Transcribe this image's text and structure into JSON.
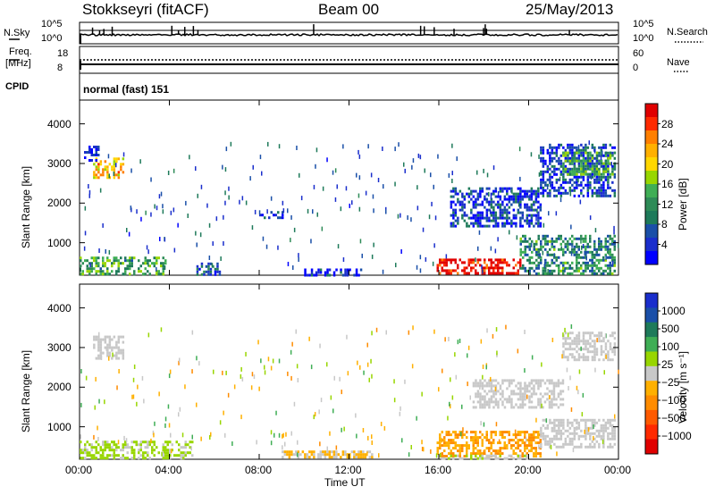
{
  "header": {
    "station": "Stokkseyri (fitACF)",
    "beam": "Beam 00",
    "date": "25/May/2013"
  },
  "noise_panel": {
    "left_label": "N.Sky",
    "right_label": "N.Search",
    "left_ticks": [
      "10^5",
      "10^0"
    ],
    "right_ticks": [
      "10^5",
      "10^0"
    ]
  },
  "freq_panel": {
    "left_label_line1": "Freq.",
    "left_label_line2": "[MHz]",
    "right_label": "Nave",
    "left_ticks": [
      "18",
      "8"
    ],
    "right_ticks": [
      "60",
      "0"
    ]
  },
  "cpid": {
    "label": "CPID",
    "value": "normal (fast) 151"
  },
  "x_axis": {
    "label": "Time UT",
    "ticks": [
      "00:00",
      "04:00",
      "08:00",
      "12:00",
      "16:00",
      "20:00",
      "00:00"
    ]
  },
  "power_colorbar": {
    "label": "Power [dB]",
    "ticks": [
      "28",
      "24",
      "20",
      "16",
      "12",
      "8",
      "4"
    ],
    "colors": [
      "#e00000",
      "#ff2a00",
      "#ff7f00",
      "#ffb000",
      "#ffd700",
      "#98d600",
      "#3fae55",
      "#2e8b57",
      "#1e7a5a",
      "#1a4fa8",
      "#1a2ecc",
      "#0000ff"
    ]
  },
  "velocity_colorbar": {
    "label": "Velocity [m s⁻¹]",
    "ticks": [
      "1000",
      "500",
      "100",
      "25",
      "−25",
      "−100",
      "−500",
      "−1000"
    ],
    "colors": [
      "#1a2ecc",
      "#1a4fa8",
      "#1e7a5a",
      "#3fae55",
      "#98d600",
      "#c8c8c8",
      "#ffb000",
      "#ff8c00",
      "#ff5a00",
      "#ff2a00",
      "#e00000"
    ]
  },
  "chart_data": [
    {
      "type": "heatmap",
      "title": "Power",
      "xlabel": "Time UT",
      "ylabel": "Slant Range [km]",
      "xlim": [
        0,
        24
      ],
      "ylim": [
        180,
        4600
      ],
      "yticks": [
        1000,
        2000,
        3000,
        4000
      ],
      "colorbar_label": "Power [dB]",
      "colorbar_range": [
        3,
        30
      ],
      "regions": [
        {
          "t_start": 0.0,
          "t_end": 3.8,
          "r_start": 180,
          "r_end": 650,
          "power_db": 14
        },
        {
          "t_start": 0.6,
          "t_end": 1.9,
          "r_start": 2650,
          "r_end": 3150,
          "power_db": 22
        },
        {
          "t_start": 0.2,
          "t_end": 0.8,
          "r_start": 3100,
          "r_end": 3450,
          "power_db": 5
        },
        {
          "t_start": 5.2,
          "t_end": 6.2,
          "r_start": 200,
          "r_end": 500,
          "power_db": 8
        },
        {
          "t_start": 8.0,
          "t_end": 9.0,
          "r_start": 1600,
          "r_end": 1800,
          "power_db": 5
        },
        {
          "t_start": 10.0,
          "t_end": 12.6,
          "r_start": 200,
          "r_end": 350,
          "power_db": 5
        },
        {
          "t_start": 15.9,
          "t_end": 19.6,
          "r_start": 250,
          "r_end": 600,
          "power_db": 30
        },
        {
          "t_start": 19.6,
          "t_end": 23.8,
          "r_start": 250,
          "r_end": 1200,
          "power_db": 12
        },
        {
          "t_start": 16.5,
          "t_end": 20.5,
          "r_start": 1400,
          "r_end": 2400,
          "power_db": 6
        },
        {
          "t_start": 20.5,
          "t_end": 23.8,
          "r_start": 2200,
          "r_end": 3500,
          "power_db": 6
        },
        {
          "t_start": 21.5,
          "t_end": 23.8,
          "r_start": 2700,
          "r_end": 3300,
          "power_db": 14
        }
      ]
    },
    {
      "type": "heatmap",
      "title": "Velocity",
      "xlabel": "Time UT",
      "ylabel": "Slant Range [km]",
      "xlim": [
        0,
        24
      ],
      "ylim": [
        180,
        4600
      ],
      "yticks": [
        1000,
        2000,
        3000,
        4000
      ],
      "colorbar_label": "Velocity [m s⁻¹]",
      "colorbar_range": [
        -1000,
        1000
      ],
      "regions": [
        {
          "t_start": 0.0,
          "t_end": 5.0,
          "r_start": 180,
          "r_end": 650,
          "velocity": 150
        },
        {
          "t_start": 0.6,
          "t_end": 1.9,
          "r_start": 2700,
          "r_end": 3300,
          "velocity": 0
        },
        {
          "t_start": 9.0,
          "t_end": 13.0,
          "r_start": 200,
          "r_end": 400,
          "velocity": -100
        },
        {
          "t_start": 15.9,
          "t_end": 20.5,
          "r_start": 250,
          "r_end": 900,
          "velocity": -300
        },
        {
          "t_start": 16.0,
          "t_end": 20.0,
          "r_start": 180,
          "r_end": 300,
          "velocity": 60
        },
        {
          "t_start": 17.5,
          "t_end": 21.5,
          "r_start": 1500,
          "r_end": 2200,
          "velocity": 0
        },
        {
          "t_start": 20.5,
          "t_end": 23.8,
          "r_start": 500,
          "r_end": 1200,
          "velocity": 0
        },
        {
          "t_start": 21.5,
          "t_end": 23.8,
          "r_start": 2700,
          "r_end": 3400,
          "velocity": 0
        }
      ]
    }
  ]
}
